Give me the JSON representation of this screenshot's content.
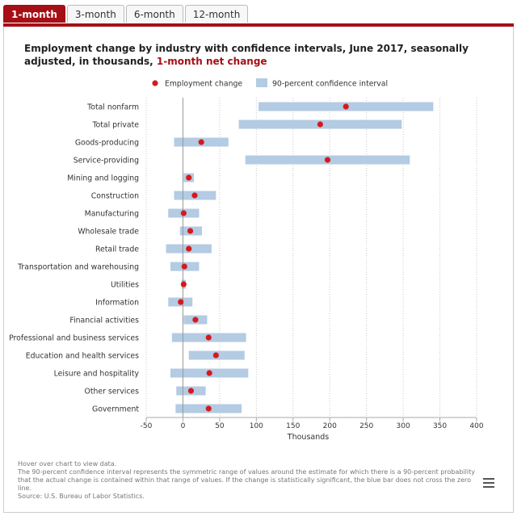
{
  "tabs": [
    "1-month",
    "3-month",
    "6-month",
    "12-month"
  ],
  "active_tab": 0,
  "title_main": "Employment change by industry with confidence intervals, June 2017, seasonally adjusted, in thousands,",
  "title_highlight": "1-month net change",
  "notes": [
    "Hover over chart to view data.",
    "The 90-percent confidence interval represents the symmetric range of values around the estimate for which there is a 90-percent probability that the actual change is contained within that range of values. If the change is statistically significant, the blue bar does not cross the zero line.",
    "Source: U.S. Bureau of Labor Statistics."
  ],
  "colors": {
    "accent": "#a50f15",
    "point": "#d7191c",
    "interval": "#b3cbe3"
  },
  "chart_data": {
    "type": "scatter",
    "xlabel": "Thousands",
    "xlim": [
      -50,
      400
    ],
    "xticks": [
      -50,
      0,
      50,
      100,
      150,
      200,
      250,
      300,
      350,
      400
    ],
    "grid": "vertical dotted",
    "legend": [
      {
        "name": "Employment change",
        "marker": "dot"
      },
      {
        "name": "90-percent confidence interval",
        "marker": "bar"
      }
    ],
    "categories": [
      "Total nonfarm",
      "Total private",
      "Goods-producing",
      "Service-providing",
      "Mining and logging",
      "Construction",
      "Manufacturing",
      "Wholesale trade",
      "Retail trade",
      "Transportation and warehousing",
      "Utilities",
      "Information",
      "Financial activities",
      "Professional and business services",
      "Education and health services",
      "Leisure and hospitality",
      "Other services",
      "Government"
    ],
    "values": [
      222,
      187,
      25,
      197,
      8,
      16,
      1,
      10,
      8,
      2,
      1,
      -3,
      17,
      35,
      45,
      36,
      11,
      35
    ],
    "intervals": [
      [
        103,
        341
      ],
      [
        76,
        298
      ],
      [
        -12,
        62
      ],
      [
        85,
        309
      ],
      [
        1,
        15
      ],
      [
        -12,
        45
      ],
      [
        -20,
        22
      ],
      [
        -4,
        26
      ],
      [
        -23,
        39
      ],
      [
        -17,
        22
      ],
      [
        -2,
        4
      ],
      [
        -20,
        13
      ],
      [
        1,
        33
      ],
      [
        -15,
        86
      ],
      [
        8,
        84
      ],
      [
        -17,
        89
      ],
      [
        -9,
        31
      ],
      [
        -10,
        80
      ]
    ]
  }
}
